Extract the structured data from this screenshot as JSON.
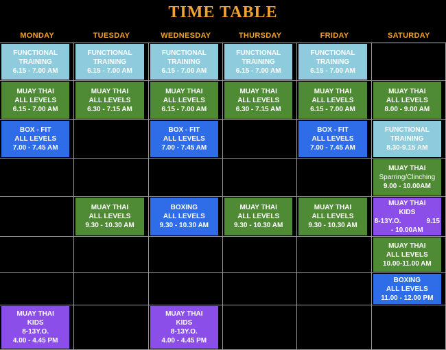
{
  "title": "TIME TABLE",
  "days": [
    "MONDAY",
    "TUESDAY",
    "WEDNESDAY",
    "THURSDAY",
    "FRIDAY",
    "SATURDAY"
  ],
  "colors": {
    "background": "#000000",
    "heading": "#F0A32E",
    "gridline": "#9A9A9A",
    "cell_text": "#FFFFFF",
    "cyan": "#8ECBDC",
    "green": "#4F8B35",
    "blue": "#2E6CE8",
    "purple": "#8B4EE9"
  },
  "rows": [
    [
      {
        "color": "cyan",
        "lines": [
          "FUNCTIONAL",
          "TRAINING",
          "6.15 - 7.00 AM"
        ]
      },
      {
        "color": "cyan",
        "lines": [
          "FUNCTIONAL",
          "TRAINING",
          "6.15 - 7.00 AM"
        ]
      },
      {
        "color": "cyan",
        "lines": [
          "FUNCTIONAL",
          "TRAINING",
          "6.15 - 7.00 AM"
        ]
      },
      {
        "color": "cyan",
        "lines": [
          "FUNCTIONAL",
          "TRAINING",
          "6.15 - 7.00 AM"
        ]
      },
      {
        "color": "cyan",
        "lines": [
          "FUNCTIONAL",
          "TRAINING",
          "6.15 - 7.00 AM"
        ]
      },
      null
    ],
    [
      {
        "color": "green",
        "lines": [
          "MUAY THAI",
          "ALL LEVELS",
          "6.15 - 7.00 AM"
        ]
      },
      {
        "color": "green",
        "lines": [
          "MUAY THAI",
          "ALL LEVELS",
          "6.30 - 7.15 AM"
        ]
      },
      {
        "color": "green",
        "lines": [
          "MUAY THAI",
          "ALL LEVELS",
          "6.15 - 7.00 AM"
        ]
      },
      {
        "color": "green",
        "lines": [
          "MUAY THAI",
          "ALL LEVELS",
          "6.30 - 7.15 AM"
        ]
      },
      {
        "color": "green",
        "lines": [
          "MUAY THAI",
          "ALL LEVELS",
          "6.15 - 7.00 AM"
        ]
      },
      {
        "color": "green",
        "lines": [
          "MUAY THAI",
          "ALL LEVELS",
          "8.00 - 9.00 AM"
        ]
      }
    ],
    [
      {
        "color": "blue",
        "lines": [
          "BOX - FIT",
          "ALL LEVELS",
          "7.00 - 7.45 AM"
        ]
      },
      null,
      {
        "color": "blue",
        "lines": [
          "BOX - FIT",
          "ALL LEVELS",
          "7.00 - 7.45 AM"
        ]
      },
      null,
      {
        "color": "blue",
        "lines": [
          "BOX - FIT",
          "ALL LEVELS",
          "7.00 - 7.45 AM"
        ]
      },
      {
        "color": "cyan",
        "lines": [
          "FUNCTIONAL",
          "TRAINING",
          "8.30-9.15 AM"
        ]
      }
    ],
    [
      null,
      null,
      null,
      null,
      null,
      {
        "color": "green",
        "lines": [
          "MUAY THAI",
          {
            "text": "Sparring/Clinching",
            "weight": "normal"
          },
          "9.00 - 10.00AM"
        ]
      }
    ],
    [
      null,
      {
        "color": "green",
        "lines": [
          "MUAY THAI",
          "ALL LEVELS",
          "9.30 - 10.30 AM"
        ]
      },
      {
        "color": "blue",
        "lines": [
          "BOXING",
          "ALL LEVELS",
          "9.30 - 10.30 AM"
        ]
      },
      {
        "color": "green",
        "lines": [
          "MUAY THAI",
          "ALL LEVELS",
          "9.30 - 10.30 AM"
        ]
      },
      {
        "color": "green",
        "lines": [
          "MUAY THAI",
          "ALL LEVELS",
          "9.30 - 10.30 AM"
        ]
      },
      {
        "color": "purple",
        "lines": [
          "MUAY THAI",
          "KIDS",
          {
            "left": "8-13Y.O.",
            "right": "9.15"
          },
          "- 10.00AM"
        ]
      }
    ],
    [
      null,
      null,
      null,
      null,
      null,
      {
        "color": "green",
        "lines": [
          "MUAY THAI",
          "ALL LEVELS",
          "10.00-11.00 AM"
        ]
      }
    ],
    [
      null,
      null,
      null,
      null,
      null,
      {
        "color": "blue",
        "lines": [
          "BOXING",
          "ALL LEVELS",
          "11.00 - 12.00 PM"
        ]
      }
    ],
    [
      {
        "color": "purple",
        "lines": [
          "MUAY THAI",
          "KIDS",
          "8-13Y.O.",
          "4.00 - 4.45 PM"
        ]
      },
      null,
      {
        "color": "purple",
        "lines": [
          "MUAY THAI",
          "KIDS",
          "8-13Y.O.",
          "4.00 - 4.45 PM"
        ]
      },
      null,
      null,
      null
    ]
  ]
}
